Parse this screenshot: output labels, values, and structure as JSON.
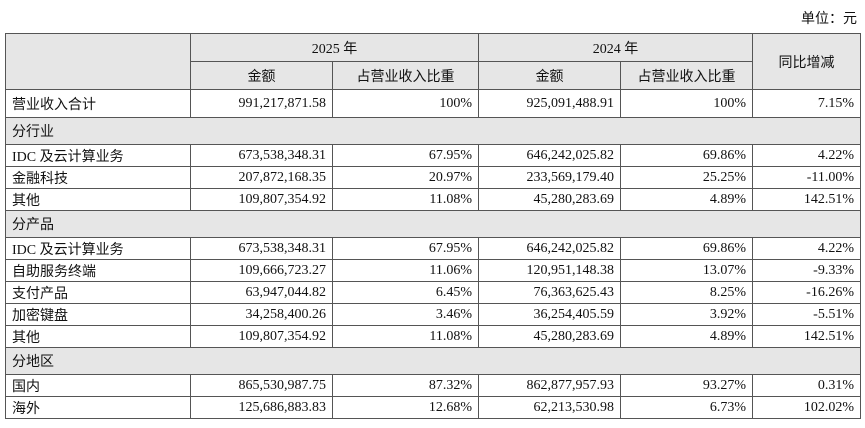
{
  "unit": "单位：元",
  "table": {
    "header": [
      "2025 年",
      "2024 年",
      "同比增减"
    ],
    "subheader": [
      "金额",
      "占营业收入比重",
      "金额",
      "占营业收入比重"
    ],
    "rows": [
      [
        "营业收入合计",
        "991,217,871.58",
        "100%",
        "925,091,488.91",
        "100%",
        "7.15%"
      ],
      [
        "分行业"
      ],
      [
        "IDC 及云计算业务",
        "673,538,348.31",
        "67.95%",
        "646,242,025.82",
        "69.86%",
        "4.22%"
      ],
      [
        "金融科技",
        "207,872,168.35",
        "20.97%",
        "233,569,179.40",
        "25.25%",
        "-11.00%"
      ],
      [
        "其他",
        "109,807,354.92",
        "11.08%",
        "45,280,283.69",
        "4.89%",
        "142.51%"
      ],
      [
        "分产品"
      ],
      [
        "IDC 及云计算业务",
        "673,538,348.31",
        "67.95%",
        "646,242,025.82",
        "69.86%",
        "4.22%"
      ],
      [
        "自助服务终端",
        "109,666,723.27",
        "11.06%",
        "120,951,148.38",
        "13.07%",
        "-9.33%"
      ],
      [
        "支付产品",
        "63,947,044.82",
        "6.45%",
        "76,363,625.43",
        "8.25%",
        "-16.26%"
      ],
      [
        "加密键盘",
        "34,258,400.26",
        "3.46%",
        "36,254,405.59",
        "3.92%",
        "-5.51%"
      ],
      [
        "其他",
        "109,807,354.92",
        "11.08%",
        "45,280,283.69",
        "4.89%",
        "142.51%"
      ],
      [
        "分地区"
      ],
      [
        "国内",
        "865,530,987.75",
        "87.32%",
        "862,877,957.93",
        "93.27%",
        "0.31%"
      ],
      [
        "海外",
        "125,686,883.83",
        "12.68%",
        "62,213,530.98",
        "6.73%",
        "102.02%"
      ]
    ]
  }
}
